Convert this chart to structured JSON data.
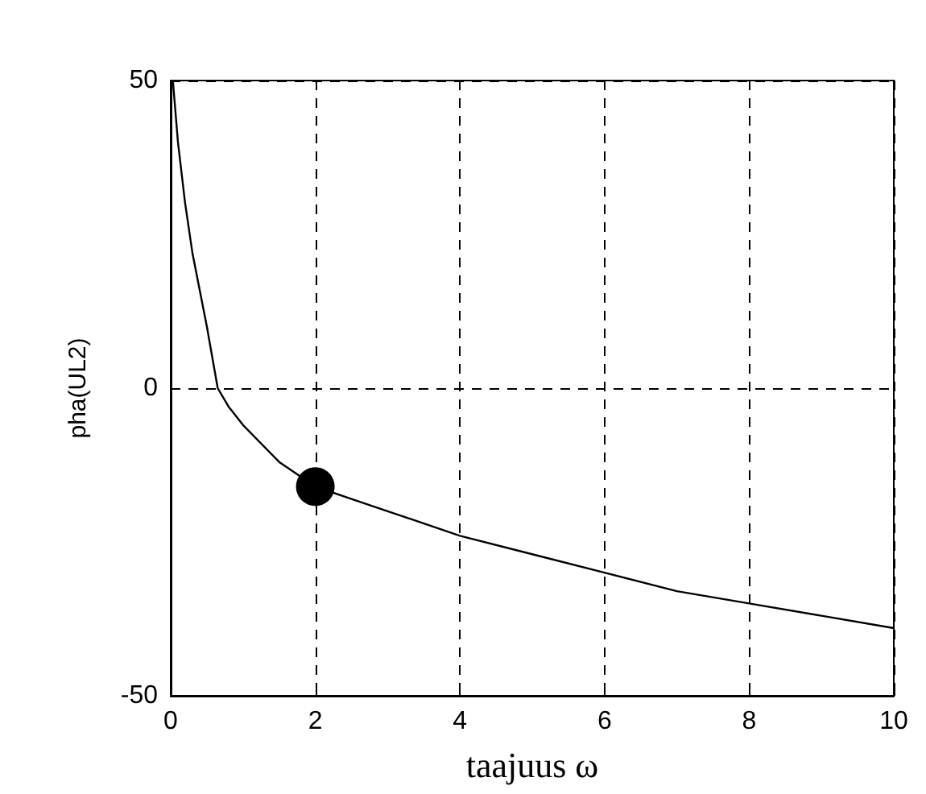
{
  "chart_data": {
    "type": "line",
    "xlabel": "taajuus ω",
    "ylabel": "pha(UL2)",
    "xlim": [
      0,
      10
    ],
    "ylim": [
      -50,
      50
    ],
    "xticks": [
      0,
      2,
      4,
      6,
      8,
      10
    ],
    "yticks": [
      -50,
      0,
      50
    ],
    "grid": true,
    "line_style": "solid",
    "marker": "none",
    "series": [
      {
        "color": "#000000",
        "x": [
          0.03,
          0.1,
          0.2,
          0.3,
          0.4,
          0.5,
          0.65,
          0.8,
          1,
          1.25,
          1.5,
          2,
          2.5,
          3,
          4,
          5,
          6,
          7,
          8,
          9,
          10
        ],
        "values": [
          50,
          40,
          30,
          22,
          16,
          10,
          0,
          -3,
          -6,
          -9,
          -12,
          -16,
          -18,
          -20,
          -24,
          -27,
          -30,
          -33,
          -35,
          -37,
          -39
        ]
      },
      {
        "type": "scatter",
        "color": "#000000",
        "marker": "circle",
        "x": [
          2
        ],
        "values": [
          -16
        ]
      }
    ]
  }
}
